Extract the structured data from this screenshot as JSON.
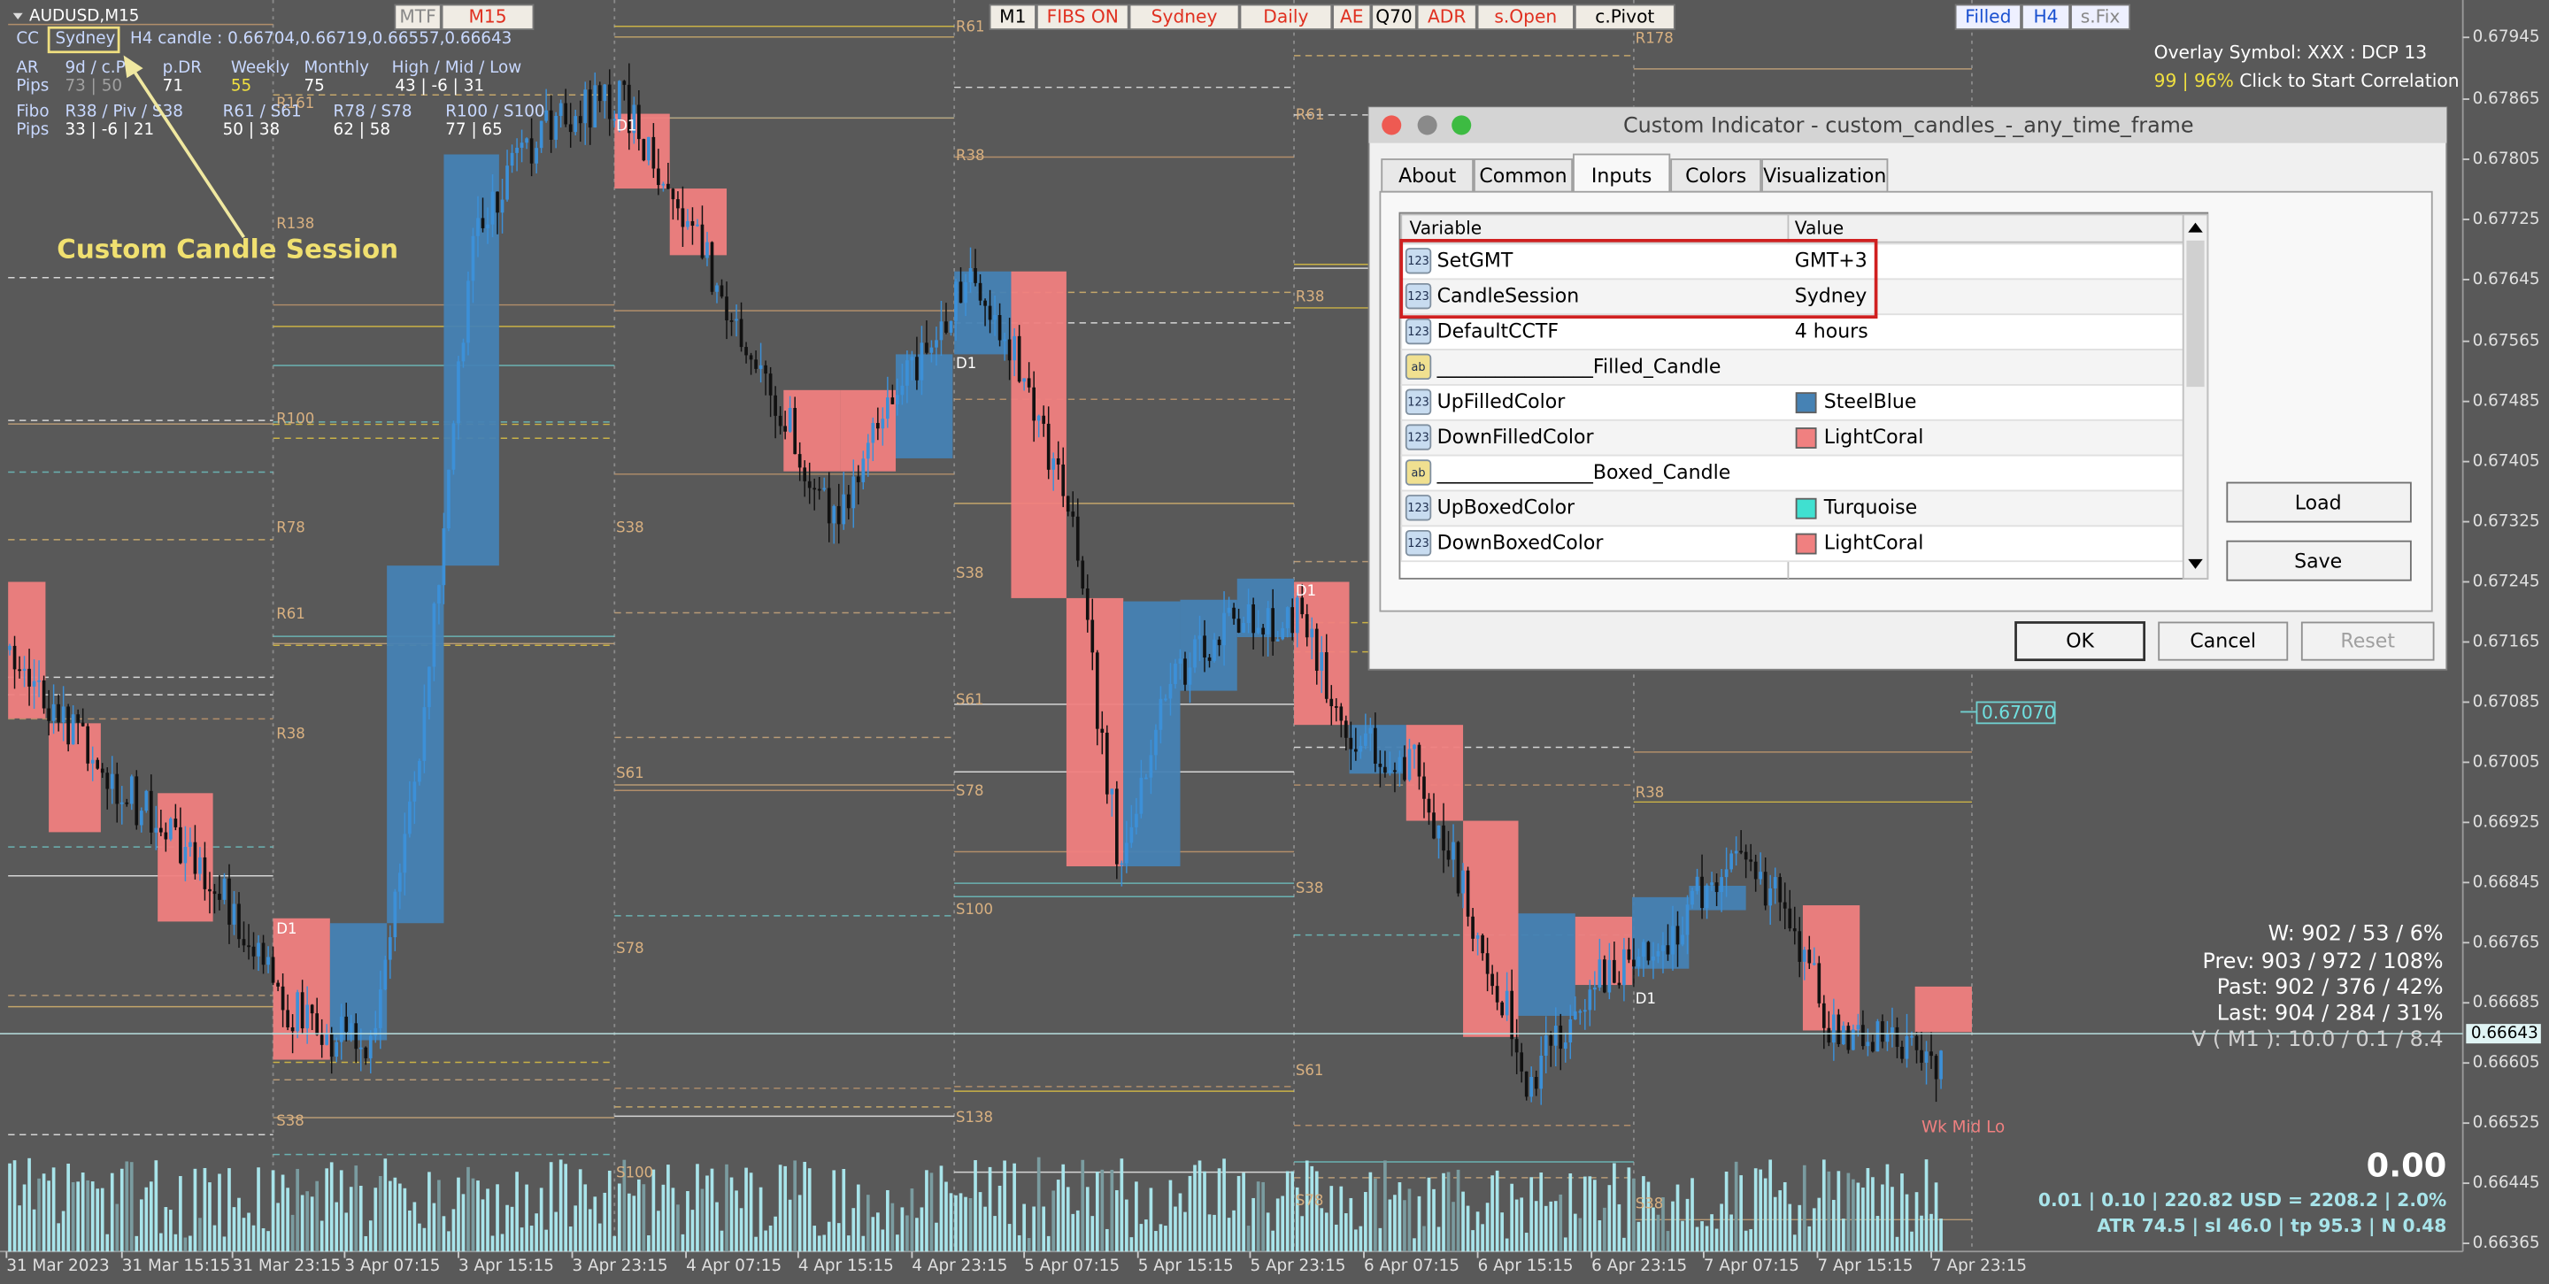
{
  "header": {
    "symbol": "AUDUSD,M15",
    "cc": "CC",
    "session": "Sydney",
    "h4_candle": "H4 candle : 0.66704,0.66719,0.66557,0.66643"
  },
  "info_table": {
    "rows": [
      [
        "AR",
        "9d / c.P",
        "p.DR",
        "Weekly",
        "Monthly",
        "High / Mid / Low"
      ],
      [
        "Pips",
        "73 | 50",
        "71",
        "55",
        "75",
        "43 | -6 | 31"
      ],
      [
        "Fibo",
        "R38 / Piv / S38",
        "R61 / S61",
        "R78 / S78",
        "R100 / S100"
      ],
      [
        "Pips",
        "33 | -6 | 21",
        "50 | 38",
        "62 | 58",
        "77 | 65"
      ]
    ]
  },
  "annotation": "Custom Candle Session",
  "toolbar": [
    {
      "label": "MTF",
      "color": "#888888"
    },
    {
      "label": "M15",
      "color": "#e03020"
    },
    {
      "label": "M1",
      "color": "#000000"
    },
    {
      "label": "FIBS ON",
      "color": "#e03020"
    },
    {
      "label": "Sydney",
      "color": "#e03020"
    },
    {
      "label": "Daily",
      "color": "#e03020"
    },
    {
      "label": "AE",
      "color": "#e03020"
    },
    {
      "label": "Q70",
      "color": "#000000"
    },
    {
      "label": "ADR",
      "color": "#e03020"
    },
    {
      "label": "s.Open",
      "color": "#e03020"
    },
    {
      "label": "c.Pivot",
      "color": "#000000"
    },
    {
      "label": "Filled",
      "color": "#1a50d0"
    },
    {
      "label": "H4",
      "color": "#1a50d0"
    },
    {
      "label": "s.Fix",
      "color": "#888888"
    }
  ],
  "overlay": {
    "line1": "Overlay Symbol: XXX : DCP 13",
    "pct": "99 | 96%",
    "action": "Click to Start Correlation"
  },
  "price_axis": [
    "0.67945",
    "0.67865",
    "0.67805",
    "0.67725",
    "0.67645",
    "0.67565",
    "0.67485",
    "0.67405",
    "0.67325",
    "0.67245",
    "0.67165",
    "0.67085",
    "0.67005",
    "0.66925",
    "0.66845",
    "0.66765",
    "0.66685",
    "0.66605",
    "0.66525",
    "0.66445",
    "0.66365"
  ],
  "current_price": "0.66643",
  "marker_price": "0.67070",
  "time_axis": [
    "31 Mar 2023",
    "31 Mar 15:15",
    "31 Mar 23:15",
    "3 Apr 07:15",
    "3 Apr 15:15",
    "3 Apr 23:15",
    "4 Apr 07:15",
    "4 Apr 15:15",
    "4 Apr 23:15",
    "5 Apr 07:15",
    "5 Apr 15:15",
    "5 Apr 23:15",
    "6 Apr 07:15",
    "6 Apr 15:15",
    "6 Apr 23:15",
    "7 Apr 07:15",
    "7 Apr 15:15",
    "7 Apr 23:15"
  ],
  "level_labels": [
    "R161",
    "R138",
    "R100",
    "R78",
    "R61",
    "R38",
    "D1",
    "S38",
    "D1",
    "S38",
    "S61",
    "S78",
    "S100",
    "R61",
    "R38",
    "D1",
    "S38",
    "S61",
    "S78",
    "S100",
    "S138",
    "R61",
    "R38",
    "D1",
    "S38",
    "S61",
    "S78",
    "R178",
    "R38",
    "D1",
    "S38"
  ],
  "stats": [
    "W: 902 / 53 / 6%",
    "Prev: 903 / 972 / 108%",
    "Past: 902 / 376 / 42%",
    "Last: 904 / 284 / 31%",
    "V ( M1 ): 10.0 / 0.1 / 8.4"
  ],
  "wk_label": "Wk Mid Lo",
  "profit": "0.00",
  "trade_line": "0.01  |  0.10  |  220.82 USD = 2208.2  |  2.0%",
  "atr_line": "ATR 74.5  |  sl 46.0  |  tp 95.3  |  N 0.48",
  "dialog": {
    "title": "Custom Indicator - custom_candles_-_any_time_frame",
    "tabs": [
      "About",
      "Common",
      "Inputs",
      "Colors",
      "Visualization"
    ],
    "columns": [
      "Variable",
      "Value"
    ],
    "rows": [
      {
        "icon": "123",
        "variable": "SetGMT",
        "value": "GMT+3"
      },
      {
        "icon": "123",
        "variable": "CandleSession",
        "value": "Sydney"
      },
      {
        "icon": "123",
        "variable": "DefaultCCTF",
        "value": "4 hours"
      },
      {
        "icon": "ab",
        "variable": "________________Filled_Candle"
      },
      {
        "icon": "123",
        "variable": "UpFilledColor",
        "value": "SteelBlue",
        "swatch": "#4682b4"
      },
      {
        "icon": "123",
        "variable": "DownFilledColor",
        "value": "LightCoral",
        "swatch": "#f08080"
      },
      {
        "icon": "ab",
        "variable": "________________Boxed_Candle"
      },
      {
        "icon": "123",
        "variable": "UpBoxedColor",
        "value": "Turquoise",
        "swatch": "#40e0d0"
      },
      {
        "icon": "123",
        "variable": "DownBoxedColor",
        "value": "LightCoral",
        "swatch": "#f08080"
      }
    ],
    "side_buttons": [
      "Load",
      "Save"
    ],
    "buttons": [
      "OK",
      "Cancel",
      "Reset"
    ]
  }
}
